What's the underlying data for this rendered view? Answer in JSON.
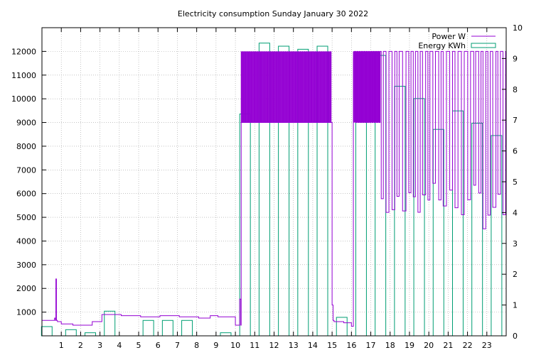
{
  "chart_data": {
    "type": "line",
    "title": "Electricity consumption Sunday January 30 2022",
    "xlabel": "",
    "ylabel": "",
    "y2label": "",
    "xlim": [
      0,
      24
    ],
    "ylim": [
      0,
      13000
    ],
    "y2lim": [
      0,
      10
    ],
    "grid": true,
    "legend_placement": "top-right",
    "x_ticks": [
      "1",
      "2",
      "3",
      "4",
      "5",
      "6",
      "7",
      "8",
      "9",
      "10",
      "11",
      "12",
      "13",
      "14",
      "15",
      "16",
      "17",
      "18",
      "19",
      "20",
      "21",
      "22",
      "23"
    ],
    "y_ticks": [
      "1000",
      "2000",
      "3000",
      "4000",
      "5000",
      "6000",
      "7000",
      "8000",
      "9000",
      "10000",
      "11000",
      "12000"
    ],
    "y2_ticks": [
      "0",
      "1",
      "2",
      "3",
      "4",
      "5",
      "6",
      "7",
      "8",
      "9",
      "10"
    ],
    "series": [
      {
        "name": "Power W",
        "axis": "left",
        "color": "#9400d3",
        "x": [
          0,
          0.6,
          0.65,
          0.7,
          0.72,
          0.75,
          0.8,
          1.0,
          1.5,
          1.6,
          2.5,
          2.6,
          3.0,
          3.1,
          4.0,
          4.1,
          5.0,
          5.1,
          6.0,
          6.1,
          7.0,
          7.1,
          8.0,
          8.1,
          8.6,
          8.7,
          9.0,
          9.1,
          10.0,
          10.2,
          10.22,
          10.28,
          10.3,
          14.97,
          15.0,
          15.05,
          15.1,
          15.5,
          15.6,
          16.0,
          16.1
        ],
        "y": [
          650,
          650,
          750,
          650,
          2400,
          650,
          600,
          500,
          500,
          450,
          450,
          600,
          600,
          900,
          900,
          850,
          850,
          800,
          800,
          850,
          850,
          800,
          800,
          750,
          750,
          850,
          850,
          800,
          450,
          450,
          1550,
          450,
          9000,
          9000,
          1300,
          650,
          600,
          600,
          550,
          400,
          11700
        ],
        "osc_start": 16.0,
        "osc_end": 24.0,
        "osc_high": 12000,
        "osc_low": 5100
      },
      {
        "name": "Energy KWh",
        "axis": "right",
        "color": "#009e73",
        "x": [
          0,
          1,
          2,
          3,
          4,
          5,
          6,
          7,
          8,
          9,
          10,
          11,
          12,
          13,
          14,
          15,
          16,
          17,
          18,
          19,
          20,
          21,
          22,
          23
        ],
        "values": [
          0.3,
          0.2,
          0.1,
          0.8,
          0.0,
          0.5,
          0.5,
          0.5,
          0.0,
          0.1,
          7.2,
          9.5,
          9.4,
          9.3,
          9.4,
          0.6,
          9.1,
          9.1,
          8.1,
          7.7,
          6.7,
          7.3,
          6.9,
          6.5
        ]
      }
    ]
  }
}
